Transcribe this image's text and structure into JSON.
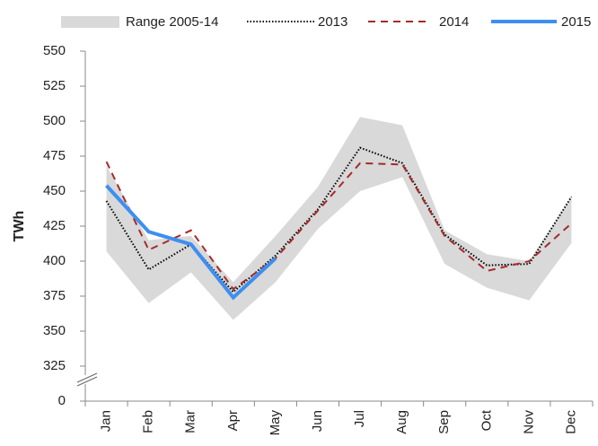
{
  "chart_data": {
    "type": "line",
    "ylabel": "TWh",
    "categories": [
      "Jan",
      "Feb",
      "Mar",
      "Apr",
      "May",
      "Jun",
      "Jul",
      "Aug",
      "Sep",
      "Oct",
      "Nov",
      "Dec"
    ],
    "range": {
      "name": "Range 2005-14",
      "color": "#d9d9d9",
      "low": [
        407,
        370,
        392,
        358,
        385,
        423,
        450,
        460,
        398,
        381,
        372,
        413
      ],
      "high": [
        468,
        415,
        418,
        385,
        418,
        453,
        503,
        497,
        422,
        405,
        400,
        446
      ]
    },
    "series": [
      {
        "name": "2013",
        "color": "#000000",
        "dash": "dotted",
        "values": [
          443,
          394,
          412,
          378,
          404,
          437,
          481,
          470,
          419,
          397,
          398,
          446
        ]
      },
      {
        "name": "2014",
        "color": "#a52a2a",
        "dash": "dashed",
        "values": [
          471,
          408,
          422,
          380,
          402,
          436,
          470,
          469,
          418,
          393,
          400,
          427
        ]
      },
      {
        "name": "2015",
        "color": "#3d8ff0",
        "dash": "solid",
        "values": [
          454,
          421,
          412,
          374,
          402,
          null,
          null,
          null,
          null,
          null,
          null,
          null
        ]
      }
    ],
    "ylim": [
      0,
      550
    ],
    "y_break": [
      0,
      300
    ],
    "yticks": [
      0,
      325,
      350,
      375,
      400,
      425,
      450,
      475,
      500,
      525,
      550
    ],
    "legend": "top"
  }
}
